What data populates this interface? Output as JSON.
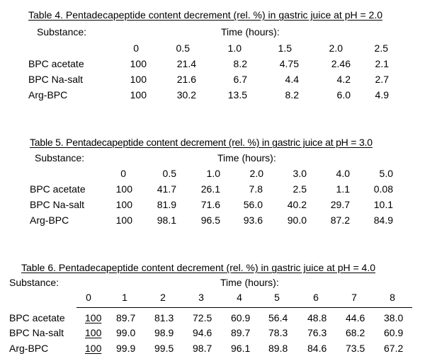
{
  "table4": {
    "title": "Table 4. Pentadecapeptide content decrement (rel. %) in gastric juice at pH = 2.0",
    "substance_header": "Substance:",
    "time_header": "Time (hours):",
    "times": [
      "0",
      "0.5",
      "1.0",
      "1.5",
      "2.0",
      "2.5"
    ],
    "rows": [
      {
        "name": "BPC acetate",
        "values": [
          "100",
          "21.4",
          "8.2",
          "4.75",
          "2.46",
          "2.1"
        ]
      },
      {
        "name": "BPC Na-salt",
        "values": [
          "100",
          "21.6",
          "6.7",
          "4.4",
          "4.2",
          "2.7"
        ]
      },
      {
        "name": "Arg-BPC",
        "values": [
          "100",
          "30.2",
          "13.5",
          "8.2",
          "6.0",
          "4.9"
        ]
      }
    ]
  },
  "table5": {
    "title": "Table 5. Pentadecapeptide content decrement (rel. %) in gastric juice at pH = 3.0",
    "substance_header": "Substance:",
    "time_header": "Time (hours):",
    "times": [
      "0",
      "0.5",
      "1.0",
      "2.0",
      "3.0",
      "4.0",
      "5.0"
    ],
    "rows": [
      {
        "name": "BPC acetate",
        "values": [
          "100",
          "41.7",
          "26.1",
          "7.8",
          "2.5",
          "1.1",
          "0.08"
        ]
      },
      {
        "name": "BPC Na-salt",
        "values": [
          "100",
          "81.9",
          "71.6",
          "56.0",
          "40.2",
          "29.7",
          "10.1"
        ]
      },
      {
        "name": "Arg-BPC",
        "values": [
          "100",
          "98.1",
          "96.5",
          "93.6",
          "90.0",
          "87.2",
          "84.9"
        ]
      }
    ]
  },
  "table6": {
    "title": "Table 6. Pentadecapeptide content decrement (rel. %) in gastric juice at pH = 4.0",
    "substance_header": "Substance:",
    "time_header": "Time (hours):",
    "times": [
      "0",
      "1",
      "2",
      "3",
      "4",
      "5",
      "6",
      "7",
      "8"
    ],
    "rows": [
      {
        "name": "BPC acetate",
        "values": [
          "100",
          "89.7",
          "81.3",
          "72.5",
          "60.9",
          "56.4",
          "48.8",
          "44.6",
          "38.0"
        ]
      },
      {
        "name": "BPC Na-salt",
        "values": [
          "100",
          "99.0",
          "98.9",
          "94.6",
          "89.7",
          "78.3",
          "76.3",
          "68.2",
          "60.9"
        ]
      },
      {
        "name": "Arg-BPC",
        "values": [
          "100",
          "99.9",
          "99.5",
          "98.7",
          "96.1",
          "89.8",
          "84.6",
          "73.5",
          "67.2"
        ]
      }
    ]
  }
}
